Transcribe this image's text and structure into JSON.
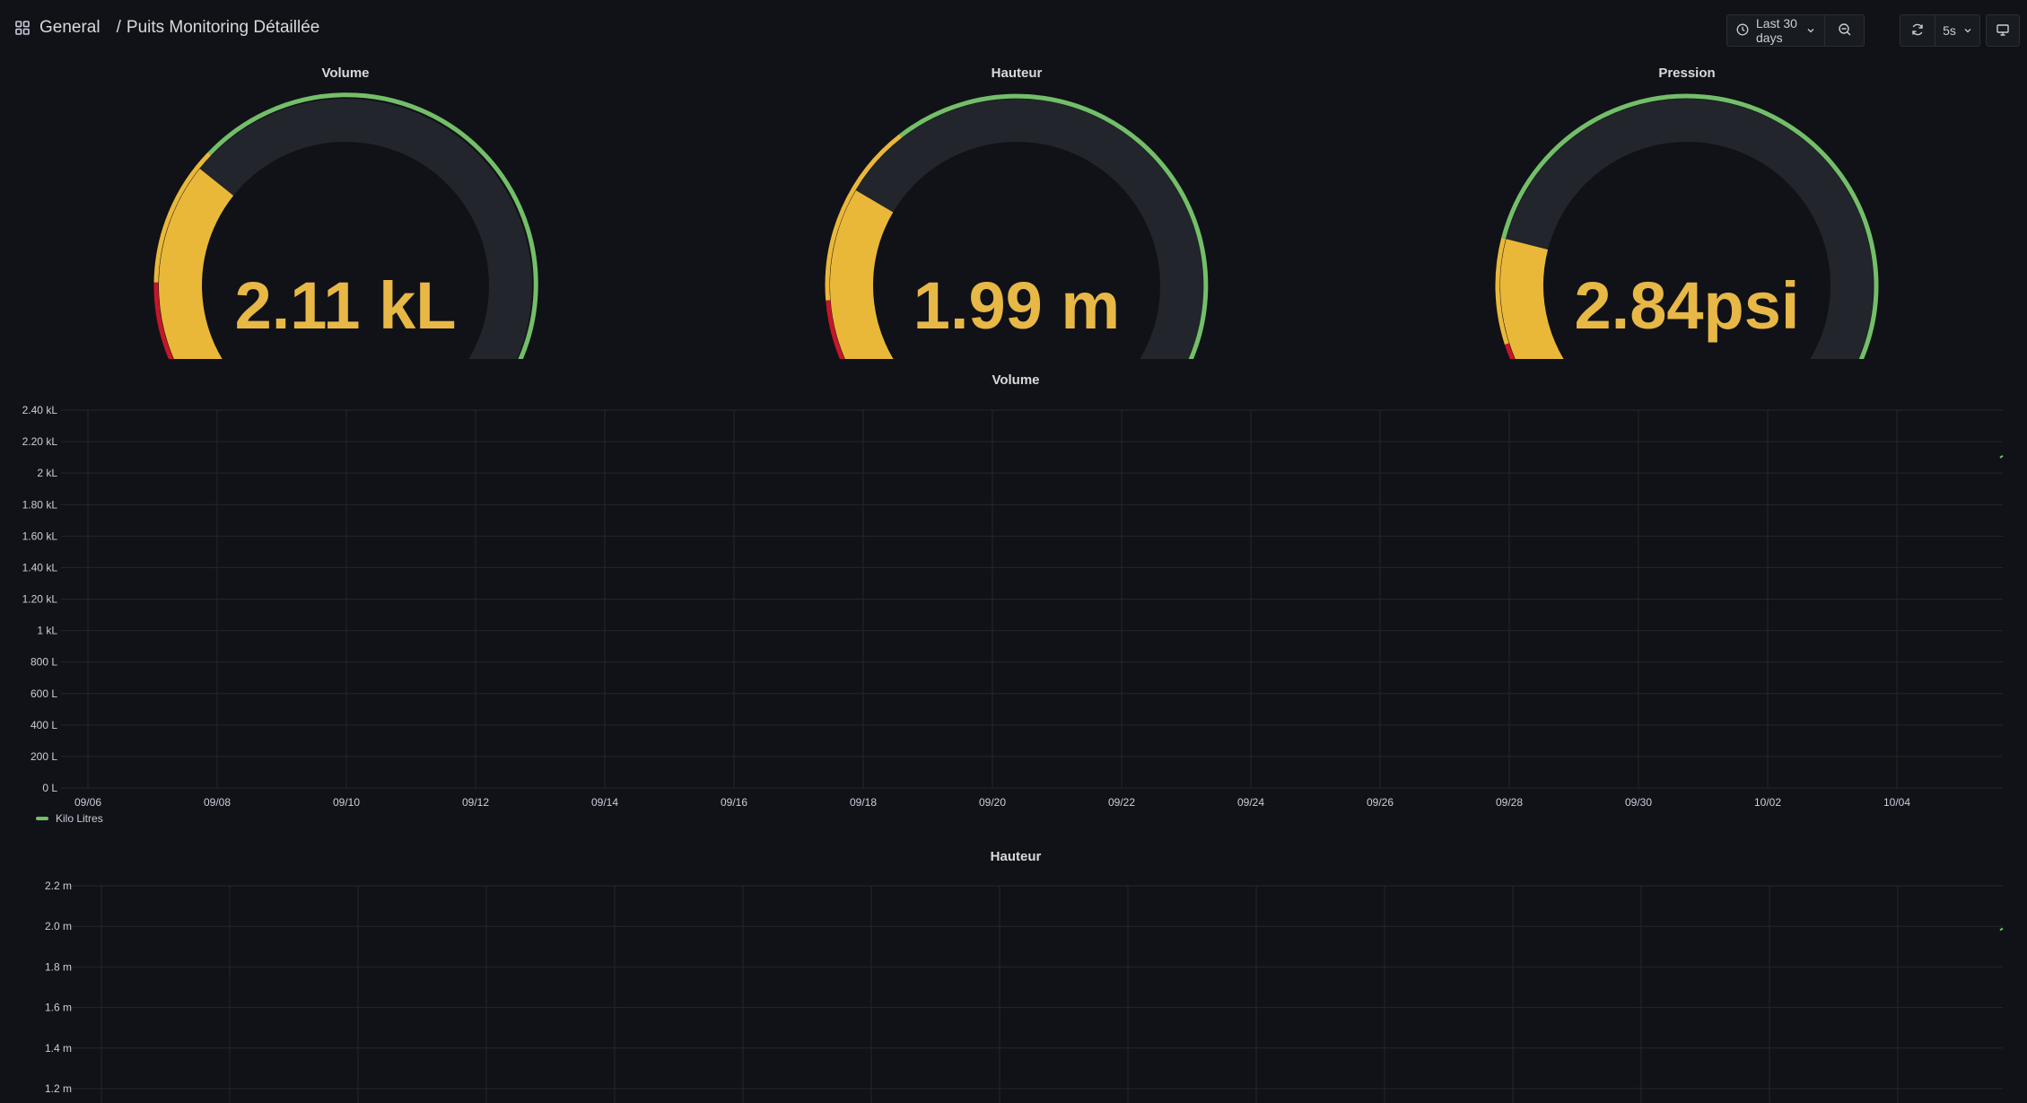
{
  "breadcrumb": {
    "folder": "General",
    "separator": "/",
    "dashboard": "Puits Monitoring Détaillée"
  },
  "toolbar": {
    "time_range": "Last 30 days",
    "refresh_interval": "5s"
  },
  "colors": {
    "background": "#111217",
    "value": "#e8b846",
    "green": "#73bf69",
    "yellow": "#eab839",
    "red": "#c4162a",
    "track": "#22252b"
  },
  "gauges": [
    {
      "title": "Volume",
      "value_text": "2.11 kL",
      "fill_fraction": 0.31,
      "thresholds": {
        "red_end": 0.17,
        "yellow_end": 0.33
      }
    },
    {
      "title": "Hauteur",
      "value_text": "1.99 m",
      "fill_fraction": 0.28,
      "thresholds": {
        "red_end": 0.15,
        "yellow_end": 0.36
      }
    },
    {
      "title": "Pression",
      "value_text": "2.84psi",
      "fill_fraction": 0.22,
      "thresholds": {
        "red_end": 0.1,
        "yellow_end": 0.22
      }
    }
  ],
  "chart_data": [
    {
      "type": "line",
      "title": "Volume",
      "y_ticks": [
        "0 L",
        "200 L",
        "400 L",
        "600 L",
        "800 L",
        "1 kL",
        "1.20 kL",
        "1.40 kL",
        "1.60 kL",
        "1.80 kL",
        "2 kL",
        "2.20 kL",
        "2.40 kL"
      ],
      "x_ticks": [
        "09/06",
        "09/08",
        "09/10",
        "09/12",
        "09/14",
        "09/16",
        "09/18",
        "09/20",
        "09/22",
        "09/24",
        "09/26",
        "09/28",
        "09/30",
        "10/02",
        "10/04"
      ],
      "ylim": [
        0,
        2400
      ],
      "grid": true,
      "legend": "bottom-left",
      "series": [
        {
          "name": "Kilo Litres",
          "color": "#73bf69",
          "x": [
            "10/05"
          ],
          "y": [
            2110
          ]
        }
      ]
    },
    {
      "type": "line",
      "title": "Hauteur",
      "y_ticks": [
        "1.2 m",
        "1.4 m",
        "1.6 m",
        "1.8 m",
        "2.0 m",
        "2.2 m"
      ],
      "ylim": [
        1.2,
        2.2
      ],
      "grid": true,
      "series": [
        {
          "color": "#73bf69",
          "x": [
            "10/05"
          ],
          "y": [
            1.99
          ]
        }
      ]
    }
  ]
}
